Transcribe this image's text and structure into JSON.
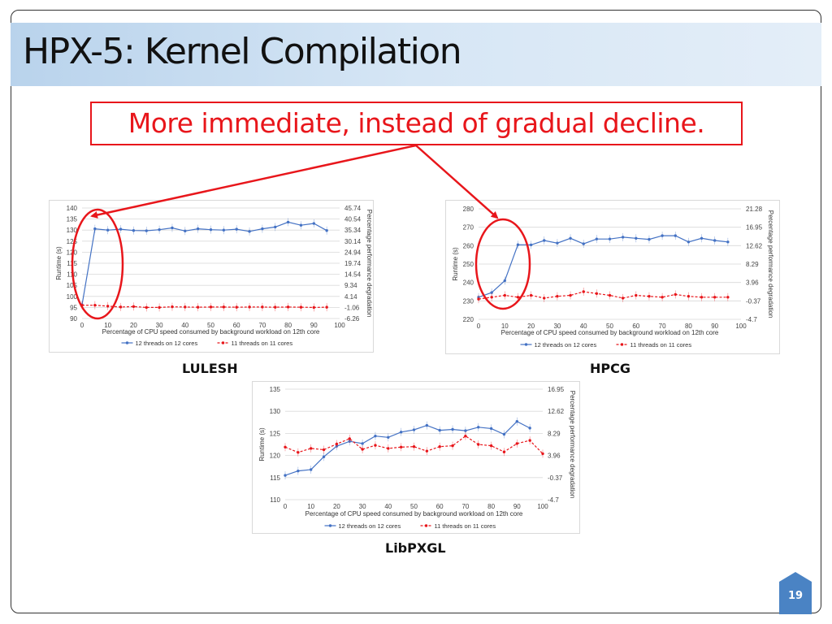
{
  "slide": {
    "title": "HPX-5: Kernel Compilation",
    "callout": "More immediate, instead of gradual decline.",
    "page_number": "19",
    "accent_color": "#e8161b"
  },
  "chart_data": [
    {
      "type": "line",
      "caption": "LULESH",
      "xlabel": "Percentage of CPU speed consumed by background workload on 12th core",
      "ylabel": "Runtime (s)",
      "y2label": "Percentage performance degradation",
      "x": [
        0,
        5,
        10,
        15,
        20,
        25,
        30,
        35,
        40,
        45,
        50,
        55,
        60,
        65,
        70,
        75,
        80,
        85,
        90,
        95
      ],
      "xticks": [
        "0",
        "10",
        "20",
        "30",
        "40",
        "50",
        "60",
        "70",
        "80",
        "90",
        "100"
      ],
      "ylim": [
        90,
        140
      ],
      "yticks": [
        "90",
        "95",
        "100",
        "105",
        "110",
        "115",
        "120",
        "125",
        "130",
        "135",
        "140"
      ],
      "y2ticks": [
        "-6.26",
        "-1.06",
        "4.14",
        "9.34",
        "14.54",
        "19.74",
        "24.94",
        "30.14",
        "35.34",
        "40.54",
        "45.74"
      ],
      "series": [
        {
          "name": "12 threads on 12 cores",
          "color": "#4472c4",
          "dash": false,
          "values": [
            96.2,
            130.6,
            130.0,
            130.4,
            129.8,
            129.7,
            130.2,
            131.0,
            129.6,
            130.6,
            130.2,
            130.0,
            130.4,
            129.4,
            130.6,
            131.4,
            133.6,
            132.2,
            133.0,
            129.8
          ]
        },
        {
          "name": "11 threads on 11 cores",
          "color": "#e8161b",
          "dash": true,
          "values": [
            96.0,
            96.0,
            95.6,
            95.2,
            95.4,
            95.0,
            95.0,
            95.3,
            95.2,
            95.1,
            95.2,
            95.2,
            95.1,
            95.2,
            95.2,
            95.1,
            95.2,
            95.1,
            95.0,
            95.1
          ]
        }
      ]
    },
    {
      "type": "line",
      "caption": "HPCG",
      "xlabel": "Percentage of CPU speed consumed by background workload on 12th core",
      "ylabel": "Runtime (s)",
      "y2label": "Percentage performance degradation",
      "x": [
        0,
        5,
        10,
        15,
        20,
        25,
        30,
        35,
        40,
        45,
        50,
        55,
        60,
        65,
        70,
        75,
        80,
        85,
        90,
        95
      ],
      "xticks": [
        "0",
        "10",
        "20",
        "30",
        "40",
        "50",
        "60",
        "70",
        "80",
        "90",
        "100"
      ],
      "ylim": [
        220,
        280
      ],
      "yticks": [
        "220",
        "230",
        "240",
        "250",
        "260",
        "270",
        "280"
      ],
      "y2ticks": [
        "-4.7",
        "-0.37",
        "3.96",
        "8.29",
        "12.62",
        "16.95",
        "21.28"
      ],
      "series": [
        {
          "name": "12 threads on 12 cores",
          "color": "#4472c4",
          "dash": false,
          "values": [
            232.0,
            234.5,
            241.0,
            260.5,
            260.4,
            262.8,
            261.4,
            264.0,
            261.0,
            263.6,
            263.6,
            264.6,
            264.0,
            263.4,
            265.4,
            265.4,
            262.0,
            264.0,
            262.8,
            262.0
          ]
        },
        {
          "name": "11 threads on 11 cores",
          "color": "#e8161b",
          "dash": true,
          "values": [
            231.0,
            232.0,
            233.0,
            232.0,
            233.0,
            231.5,
            232.5,
            233.0,
            235.0,
            234.0,
            233.0,
            231.5,
            233.0,
            232.5,
            232.0,
            233.5,
            232.5,
            232.0,
            232.0,
            232.0
          ]
        }
      ]
    },
    {
      "type": "line",
      "caption": "LibPXGL",
      "xlabel": "Percentage of CPU speed consumed by background workload on 12th core",
      "ylabel": "Runtime (s)",
      "y2label": "Percentage performance degradation",
      "x": [
        0,
        5,
        10,
        15,
        20,
        25,
        30,
        35,
        40,
        45,
        50,
        55,
        60,
        65,
        70,
        75,
        80,
        85,
        90,
        95,
        100
      ],
      "xticks": [
        "0",
        "10",
        "20",
        "30",
        "40",
        "50",
        "60",
        "70",
        "80",
        "90",
        "100"
      ],
      "ylim": [
        110,
        135
      ],
      "yticks": [
        "110",
        "115",
        "120",
        "125",
        "130",
        "135"
      ],
      "y2ticks": [
        "-4.7",
        "-0.37",
        "3.96",
        "8.29",
        "12.62",
        "16.95"
      ],
      "series": [
        {
          "name": "12 threads on 12 cores",
          "color": "#4472c4",
          "dash": false,
          "values": [
            115.5,
            116.5,
            116.8,
            119.7,
            122.1,
            123.2,
            122.7,
            124.4,
            124.1,
            125.3,
            125.8,
            126.8,
            125.7,
            125.9,
            125.6,
            126.4,
            126.1,
            124.8,
            127.7,
            126.2,
            null
          ]
        },
        {
          "name": "11 threads on 11 cores",
          "color": "#e8161b",
          "dash": true,
          "values": [
            121.9,
            120.7,
            121.6,
            121.3,
            122.6,
            123.8,
            121.4,
            122.3,
            121.6,
            121.9,
            122.0,
            121.0,
            122.0,
            122.2,
            124.4,
            122.5,
            122.2,
            120.8,
            122.7,
            123.4,
            120.4
          ]
        }
      ]
    }
  ]
}
